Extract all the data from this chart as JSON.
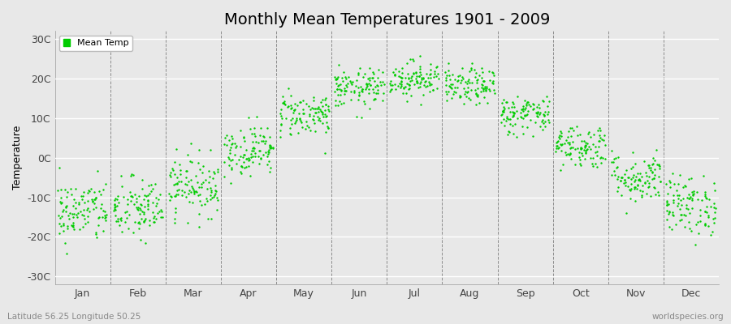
{
  "title": "Monthly Mean Temperatures 1901 - 2009",
  "ylabel": "Temperature",
  "xlabel_labels": [
    "Jan",
    "Feb",
    "Mar",
    "Apr",
    "May",
    "Jun",
    "Jul",
    "Aug",
    "Sep",
    "Oct",
    "Nov",
    "Dec"
  ],
  "ytick_labels": [
    "30C",
    "20C",
    "10C",
    "0C",
    "-10C",
    "-20C",
    "-30C"
  ],
  "ytick_values": [
    30,
    20,
    10,
    0,
    -10,
    -20,
    -30
  ],
  "ylim": [
    -32,
    32
  ],
  "legend_label": "Mean Temp",
  "dot_color": "#00CC00",
  "bg_color": "#e8e8e8",
  "plot_bg_color": "#e8e8e8",
  "subtitle": "Latitude 56.25 Longitude 50.25",
  "watermark": "worldspecies.org",
  "title_fontsize": 14,
  "label_fontsize": 9,
  "n_years": 109,
  "monthly_mean": [
    -13.5,
    -13.0,
    -7.0,
    2.0,
    11.0,
    17.5,
    20.0,
    18.0,
    11.0,
    3.0,
    -5.0,
    -12.0
  ],
  "monthly_std": [
    4.0,
    4.0,
    3.8,
    3.2,
    2.8,
    2.5,
    2.3,
    2.3,
    2.5,
    2.8,
    3.2,
    3.8
  ]
}
